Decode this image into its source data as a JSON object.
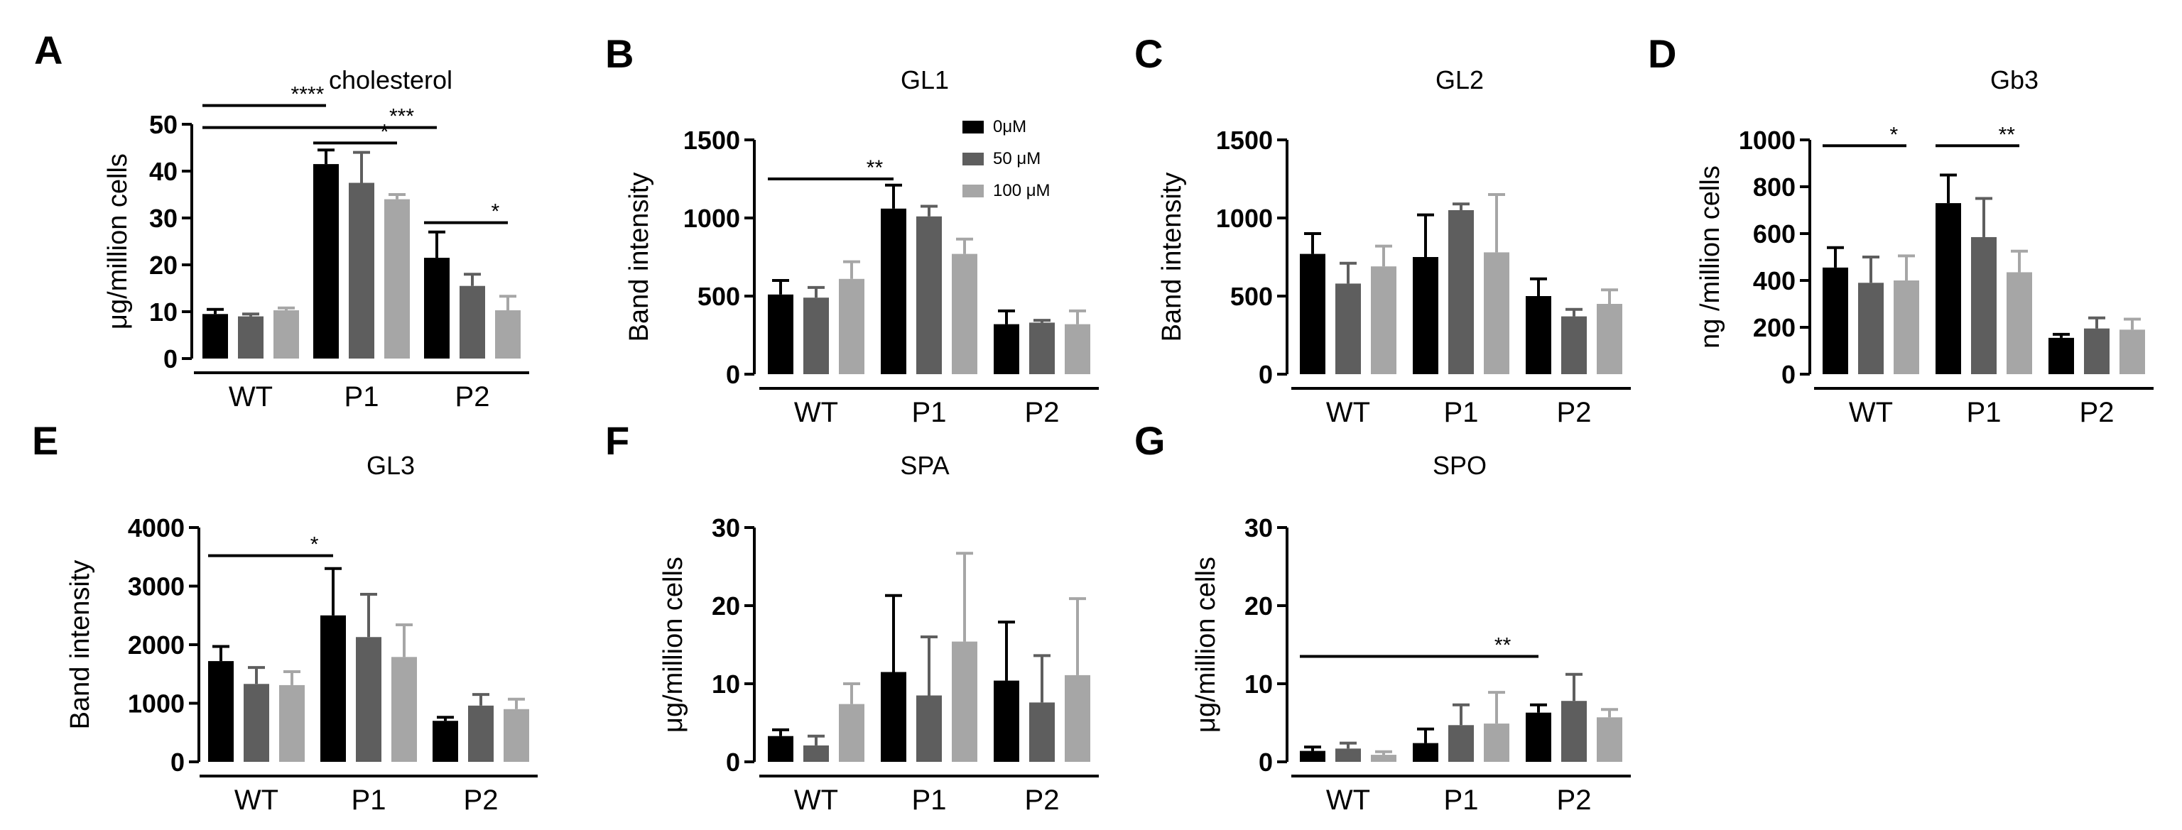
{
  "legend": {
    "entries": [
      {
        "label": "0μM",
        "color": "#000000"
      },
      {
        "label": "50 μM",
        "color": "#5e5e5e"
      },
      {
        "label": "100 μM",
        "color": "#a6a6a6"
      }
    ],
    "placement": "top-right of panel B"
  },
  "colors": {
    "series": [
      "#000000",
      "#5e5e5e",
      "#a6a6a6"
    ]
  },
  "chart_data": [
    {
      "panel_letter": "A",
      "type": "bar",
      "title": "cholesterol",
      "ylabel": "μg/million cells",
      "ylim": [
        0,
        50
      ],
      "yticks": [
        0,
        10,
        20,
        30,
        40,
        50
      ],
      "categories": [
        "WT",
        "P1",
        "P2"
      ],
      "series": [
        {
          "name": "0μM",
          "values": [
            9.5,
            41.5,
            21.5
          ],
          "errors": [
            1.0,
            3.0,
            5.5
          ]
        },
        {
          "name": "50 μM",
          "values": [
            9.0,
            37.5,
            15.5
          ],
          "errors": [
            0.5,
            6.5,
            2.5
          ]
        },
        {
          "name": "100 μM",
          "values": [
            10.3,
            34.0,
            10.3
          ],
          "errors": [
            0.5,
            1.0,
            3.0
          ]
        }
      ],
      "significance": [
        {
          "label": "****",
          "from": [
            0,
            0
          ],
          "to": [
            1,
            0
          ],
          "y": 54
        },
        {
          "label": "***",
          "from": [
            0,
            0
          ],
          "to": [
            2,
            0
          ],
          "y": 49.3
        },
        {
          "label": "*",
          "from": [
            1,
            0
          ],
          "to": [
            1,
            2
          ],
          "y": 46
        },
        {
          "label": "*",
          "from": [
            2,
            0
          ],
          "to": [
            2,
            2
          ],
          "y": 29
        }
      ]
    },
    {
      "panel_letter": "B",
      "type": "bar",
      "title": "GL1",
      "ylabel": "Band intensity",
      "ylim": [
        0,
        1500
      ],
      "yticks": [
        0,
        500,
        1000,
        1500
      ],
      "categories": [
        "WT",
        "P1",
        "P2"
      ],
      "series": [
        {
          "name": "0μM",
          "values": [
            510,
            1060,
            320
          ],
          "errors": [
            90,
            150,
            85
          ]
        },
        {
          "name": "50 μM",
          "values": [
            490,
            1010,
            330
          ],
          "errors": [
            65,
            65,
            15
          ]
        },
        {
          "name": "100 μM",
          "values": [
            610,
            770,
            320
          ],
          "errors": [
            110,
            95,
            85
          ]
        }
      ],
      "significance": [
        {
          "label": "**",
          "from": [
            0,
            0
          ],
          "to": [
            1,
            0
          ],
          "y": 1250
        }
      ]
    },
    {
      "panel_letter": "C",
      "type": "bar",
      "title": "GL2",
      "ylabel": "Band intensity",
      "ylim": [
        0,
        1500
      ],
      "yticks": [
        0,
        500,
        1000,
        1500
      ],
      "categories": [
        "WT",
        "P1",
        "P2"
      ],
      "series": [
        {
          "name": "0μM",
          "values": [
            770,
            750,
            500
          ],
          "errors": [
            130,
            270,
            110
          ]
        },
        {
          "name": "50 μM",
          "values": [
            580,
            1050,
            370
          ],
          "errors": [
            130,
            40,
            45
          ]
        },
        {
          "name": "100 μM",
          "values": [
            690,
            780,
            450
          ],
          "errors": [
            130,
            370,
            90
          ]
        }
      ],
      "significance": []
    },
    {
      "panel_letter": "D",
      "type": "bar",
      "title": "Gb3",
      "ylabel": "ng /million cells",
      "ylim": [
        0,
        1000
      ],
      "yticks": [
        0,
        200,
        400,
        600,
        800,
        1000
      ],
      "categories": [
        "WT",
        "P1",
        "P2"
      ],
      "series": [
        {
          "name": "0μM",
          "values": [
            455,
            730,
            155
          ],
          "errors": [
            85,
            120,
            15
          ]
        },
        {
          "name": "50 μM",
          "values": [
            390,
            585,
            195
          ],
          "errors": [
            110,
            165,
            45
          ]
        },
        {
          "name": "100 μM",
          "values": [
            400,
            435,
            190
          ],
          "errors": [
            105,
            90,
            45
          ]
        }
      ],
      "significance": [
        {
          "label": "*",
          "from": [
            0,
            0
          ],
          "to": [
            0,
            2
          ],
          "y": 975
        },
        {
          "label": "**",
          "from": [
            1,
            0
          ],
          "to": [
            1,
            2
          ],
          "y": 975
        }
      ]
    },
    {
      "panel_letter": "E",
      "type": "bar",
      "title": "GL3",
      "ylabel": "Band intensity",
      "ylim": [
        0,
        4000
      ],
      "yticks": [
        0,
        1000,
        2000,
        3000,
        4000
      ],
      "categories": [
        "WT",
        "P1",
        "P2"
      ],
      "series": [
        {
          "name": "0μM",
          "values": [
            1720,
            2500,
            700
          ],
          "errors": [
            250,
            800,
            60
          ]
        },
        {
          "name": "50 μM",
          "values": [
            1330,
            2130,
            960
          ],
          "errors": [
            280,
            730,
            190
          ]
        },
        {
          "name": "100 μM",
          "values": [
            1310,
            1790,
            900
          ],
          "errors": [
            230,
            550,
            170
          ]
        }
      ],
      "significance": [
        {
          "label": "*",
          "from": [
            0,
            0
          ],
          "to": [
            1,
            0
          ],
          "y": 3520
        }
      ]
    },
    {
      "panel_letter": "F",
      "type": "bar",
      "title": "SPA",
      "ylabel": "μg/million cells",
      "ylim": [
        0,
        30
      ],
      "yticks": [
        0,
        10,
        20,
        30
      ],
      "categories": [
        "WT",
        "P1",
        "P2"
      ],
      "series": [
        {
          "name": "0μM",
          "values": [
            3.3,
            11.5,
            10.4
          ],
          "errors": [
            0.8,
            9.8,
            7.5
          ]
        },
        {
          "name": "50 μM",
          "values": [
            2.1,
            8.5,
            7.6
          ],
          "errors": [
            1.2,
            7.5,
            6.0
          ]
        },
        {
          "name": "100 μM",
          "values": [
            7.4,
            15.4,
            11.1
          ],
          "errors": [
            2.6,
            11.3,
            9.8
          ]
        }
      ],
      "significance": []
    },
    {
      "panel_letter": "G",
      "type": "bar",
      "title": "SPO",
      "ylabel": "μg/million cells",
      "ylim": [
        0,
        30
      ],
      "yticks": [
        0,
        10,
        20,
        30
      ],
      "categories": [
        "WT",
        "P1",
        "P2"
      ],
      "series": [
        {
          "name": "0μM",
          "values": [
            1.4,
            2.4,
            6.3
          ],
          "errors": [
            0.5,
            1.8,
            1.0
          ]
        },
        {
          "name": "50 μM",
          "values": [
            1.7,
            4.7,
            7.8
          ],
          "errors": [
            0.7,
            2.6,
            3.4
          ]
        },
        {
          "name": "100 μM",
          "values": [
            0.9,
            4.9,
            5.7
          ],
          "errors": [
            0.4,
            4.0,
            1.0
          ]
        }
      ],
      "significance": [
        {
          "label": "**",
          "from": [
            0,
            0
          ],
          "to": [
            2,
            0
          ],
          "y": 13.5
        }
      ]
    }
  ]
}
